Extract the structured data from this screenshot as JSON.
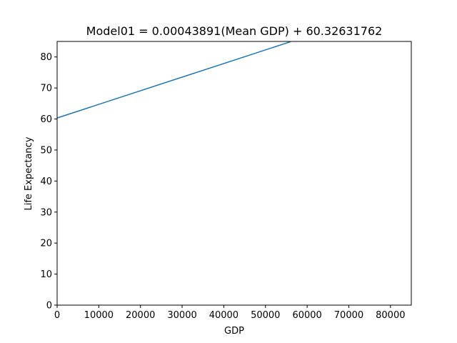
{
  "chart_data": {
    "type": "line",
    "title": "Model01 = 0.00043891(Mean GDP) + 60.32631762",
    "xlabel": "GDP",
    "ylabel": "Life Expectancy",
    "xlim": [
      0,
      85000
    ],
    "ylim": [
      0,
      85
    ],
    "xticks": [
      0,
      10000,
      20000,
      30000,
      40000,
      50000,
      60000,
      70000,
      80000
    ],
    "yticks": [
      0,
      10,
      20,
      30,
      40,
      50,
      60,
      70,
      80
    ],
    "grid": false,
    "series": [
      {
        "color": "#1f77b4",
        "x": [
          0,
          56000
        ],
        "y": [
          60.33,
          84.91
        ]
      }
    ]
  }
}
